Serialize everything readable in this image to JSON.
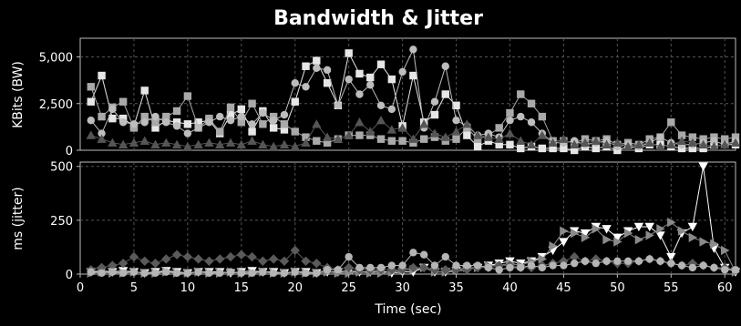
{
  "chart_data": [
    {
      "type": "line",
      "title": "Bandwidth & Jitter",
      "ylabel": "KBits (BW)",
      "xlabel": "",
      "xlim": [
        0,
        61
      ],
      "ylim": [
        0,
        6000
      ],
      "yticks": [
        0,
        2500,
        5000
      ],
      "ytick_labels": [
        "0",
        "2,500",
        "5,000"
      ],
      "grid": true,
      "series": [
        {
          "marker": "square",
          "color": "#e6e6e6",
          "x": [
            1,
            2,
            3,
            4,
            5,
            6,
            7,
            8,
            9,
            10,
            11,
            12,
            13,
            14,
            15,
            16,
            17,
            18,
            19,
            20,
            21,
            22,
            23,
            24,
            25,
            26,
            27,
            28,
            29,
            30,
            31,
            32,
            33,
            34,
            35,
            36,
            37,
            38,
            39,
            40,
            41,
            42,
            43,
            44,
            45,
            46,
            47,
            48,
            49,
            50,
            51,
            52,
            53,
            54,
            55,
            56,
            57,
            58,
            59,
            60,
            61
          ],
          "y": [
            2600,
            4000,
            1700,
            1700,
            1300,
            3200,
            1200,
            1600,
            1500,
            1400,
            1500,
            1600,
            900,
            1900,
            2200,
            1000,
            2100,
            1200,
            1100,
            2600,
            4500,
            4800,
            3600,
            2400,
            5200,
            4100,
            3900,
            4600,
            3800,
            1300,
            4000,
            1500,
            1900,
            3000,
            2400,
            800,
            200,
            500,
            300,
            300,
            100,
            200,
            100,
            100,
            100,
            0,
            200,
            100,
            200,
            0,
            200,
            100,
            300,
            300,
            200,
            100,
            100,
            100,
            200,
            300,
            300
          ]
        },
        {
          "marker": "square",
          "color": "#a9a9a9",
          "x": [
            1,
            2,
            3,
            4,
            5,
            6,
            7,
            8,
            9,
            10,
            11,
            12,
            13,
            14,
            15,
            16,
            17,
            18,
            19,
            20,
            21,
            22,
            23,
            24,
            25,
            26,
            27,
            28,
            29,
            30,
            31,
            32,
            33,
            34,
            35,
            36,
            37,
            38,
            39,
            40,
            41,
            42,
            43,
            44,
            45,
            46,
            47,
            48,
            49,
            50,
            51,
            52,
            53,
            54,
            55,
            56,
            57,
            58,
            59,
            60,
            61
          ],
          "y": [
            3400,
            1800,
            2300,
            2600,
            1200,
            1800,
            1500,
            1800,
            2100,
            2900,
            1200,
            1700,
            1000,
            2300,
            1500,
            2500,
            1400,
            1800,
            1400,
            1000,
            700,
            500,
            400,
            600,
            800,
            800,
            800,
            600,
            500,
            500,
            400,
            600,
            700,
            500,
            600,
            1200,
            600,
            800,
            1200,
            2000,
            3000,
            2500,
            1800,
            500,
            500,
            400,
            600,
            500,
            600,
            300,
            400,
            300,
            600,
            700,
            1500,
            800,
            700,
            600,
            700,
            600,
            700
          ]
        },
        {
          "marker": "circle",
          "color": "#bdbdbd",
          "x": [
            1,
            2,
            3,
            4,
            5,
            6,
            7,
            8,
            9,
            10,
            11,
            12,
            13,
            14,
            15,
            16,
            17,
            18,
            19,
            20,
            21,
            22,
            23,
            24,
            25,
            26,
            27,
            28,
            29,
            30,
            31,
            32,
            33,
            34,
            35,
            36,
            37,
            38,
            39,
            40,
            41,
            42,
            43,
            44,
            45,
            46,
            47,
            48,
            49,
            50,
            51,
            52,
            53,
            54,
            55,
            56,
            57,
            58,
            59,
            60,
            61
          ],
          "y": [
            1600,
            900,
            2200,
            1500,
            1400,
            1500,
            1800,
            1500,
            1300,
            900,
            1200,
            1500,
            1800,
            1600,
            1800,
            1400,
            2000,
            1600,
            1900,
            3600,
            3400,
            4400,
            4300,
            2400,
            3800,
            3000,
            3500,
            2400,
            2200,
            4200,
            5400,
            1200,
            2600,
            4500,
            1600,
            1300,
            800,
            900,
            700,
            1600,
            1800,
            1500,
            900,
            400,
            400,
            500,
            300,
            400,
            500,
            200,
            300,
            200,
            400,
            700,
            400,
            300,
            300,
            400,
            500,
            300,
            500
          ]
        },
        {
          "marker": "triangle-up",
          "color": "#555555",
          "x": [
            1,
            2,
            3,
            4,
            5,
            6,
            7,
            8,
            9,
            10,
            11,
            12,
            13,
            14,
            15,
            16,
            17,
            18,
            19,
            20,
            21,
            22,
            23,
            24,
            25,
            26,
            27,
            28,
            29,
            30,
            31,
            32,
            33,
            34,
            35,
            36,
            37,
            38,
            39,
            40,
            41,
            42,
            43,
            44,
            45,
            46,
            47,
            48,
            49,
            50,
            51,
            52,
            53,
            54,
            55,
            56,
            57,
            58,
            59,
            60,
            61
          ],
          "y": [
            800,
            600,
            400,
            300,
            400,
            500,
            300,
            400,
            300,
            200,
            300,
            400,
            300,
            400,
            300,
            500,
            300,
            200,
            300,
            200,
            400,
            1400,
            700,
            600,
            800,
            1500,
            1000,
            1600,
            1100,
            1200,
            600,
            1400,
            900,
            700,
            1000,
            1400,
            800,
            700,
            600,
            900,
            500,
            300,
            800,
            400,
            600,
            300,
            400,
            500,
            300,
            400,
            200,
            300,
            400,
            200,
            300,
            500,
            400,
            300,
            200,
            300,
            400
          ]
        }
      ]
    },
    {
      "type": "line",
      "title": "",
      "ylabel": "ms (jitter)",
      "xlabel": "Time (sec)",
      "xlim": [
        0,
        61
      ],
      "ylim": [
        0,
        520
      ],
      "xticks": [
        0,
        5,
        10,
        15,
        20,
        25,
        30,
        35,
        40,
        45,
        50,
        55,
        60
      ],
      "yticks": [
        0,
        250,
        500
      ],
      "ytick_labels": [
        "0",
        "250",
        "500"
      ],
      "grid": true,
      "series": [
        {
          "marker": "triangle-down",
          "color": "#ffffff",
          "x": [
            1,
            2,
            3,
            4,
            5,
            6,
            7,
            8,
            9,
            10,
            11,
            12,
            13,
            14,
            15,
            16,
            17,
            18,
            19,
            20,
            21,
            22,
            23,
            24,
            25,
            26,
            27,
            28,
            29,
            30,
            31,
            32,
            33,
            34,
            35,
            36,
            37,
            38,
            39,
            40,
            41,
            42,
            43,
            44,
            45,
            46,
            47,
            48,
            49,
            50,
            51,
            52,
            53,
            54,
            55,
            56,
            57,
            58,
            59,
            60,
            61
          ],
          "y": [
            10,
            15,
            10,
            15,
            10,
            5,
            10,
            15,
            10,
            5,
            10,
            10,
            10,
            5,
            10,
            15,
            10,
            10,
            5,
            10,
            10,
            5,
            10,
            10,
            15,
            10,
            10,
            15,
            5,
            10,
            10,
            30,
            10,
            10,
            15,
            20,
            30,
            40,
            50,
            60,
            50,
            60,
            80,
            110,
            150,
            200,
            190,
            220,
            210,
            170,
            200,
            220,
            220,
            180,
            80,
            190,
            220,
            500,
            120,
            30,
            10
          ]
        },
        {
          "marker": "triangle-right",
          "color": "#8a8a8a",
          "x": [
            1,
            2,
            3,
            4,
            5,
            6,
            7,
            8,
            9,
            10,
            11,
            12,
            13,
            14,
            15,
            16,
            17,
            18,
            19,
            20,
            21,
            22,
            23,
            24,
            25,
            26,
            27,
            28,
            29,
            30,
            31,
            32,
            33,
            34,
            35,
            36,
            37,
            38,
            39,
            40,
            41,
            42,
            43,
            44,
            45,
            46,
            47,
            48,
            49,
            50,
            51,
            52,
            53,
            54,
            55,
            56,
            57,
            58,
            59,
            60,
            61
          ],
          "y": [
            5,
            10,
            5,
            5,
            10,
            5,
            5,
            10,
            5,
            5,
            10,
            5,
            5,
            10,
            5,
            5,
            10,
            5,
            5,
            10,
            5,
            5,
            10,
            5,
            5,
            10,
            5,
            5,
            10,
            20,
            20,
            30,
            10,
            10,
            20,
            30,
            30,
            40,
            40,
            50,
            40,
            60,
            70,
            130,
            200,
            190,
            170,
            210,
            160,
            150,
            190,
            160,
            180,
            210,
            240,
            200,
            170,
            150,
            140,
            110,
            10
          ]
        },
        {
          "marker": "diamond",
          "color": "#5a5a5a",
          "x": [
            1,
            2,
            3,
            4,
            5,
            6,
            7,
            8,
            9,
            10,
            11,
            12,
            13,
            14,
            15,
            16,
            17,
            18,
            19,
            20,
            21,
            22,
            23,
            24,
            25,
            26,
            27,
            28,
            29,
            30,
            31,
            32,
            33,
            34,
            35,
            36,
            37,
            38,
            39,
            40,
            41,
            42,
            43,
            44,
            45,
            46,
            47,
            48,
            49,
            50,
            51,
            52,
            53,
            54,
            55,
            56,
            57,
            58,
            59,
            60,
            61
          ],
          "y": [
            20,
            30,
            40,
            50,
            80,
            60,
            50,
            70,
            90,
            80,
            70,
            60,
            70,
            80,
            90,
            80,
            60,
            70,
            60,
            110,
            60,
            50,
            30,
            20,
            30,
            20,
            20,
            20,
            20,
            20,
            30,
            30,
            20,
            20,
            20,
            20,
            30,
            30,
            40,
            40,
            30,
            30,
            40,
            50,
            60,
            80,
            60,
            70,
            60,
            50,
            50,
            60,
            70,
            60,
            50,
            40,
            50,
            40,
            30,
            30,
            20
          ]
        },
        {
          "marker": "circle",
          "color": "#b5b5b5",
          "x": [
            1,
            2,
            3,
            4,
            5,
            6,
            7,
            8,
            9,
            10,
            11,
            12,
            13,
            14,
            15,
            16,
            17,
            18,
            19,
            20,
            21,
            22,
            23,
            24,
            25,
            26,
            27,
            28,
            29,
            30,
            31,
            32,
            33,
            34,
            35,
            36,
            37,
            38,
            39,
            40,
            41,
            42,
            43,
            44,
            45,
            46,
            47,
            48,
            49,
            50,
            51,
            52,
            53,
            54,
            55,
            56,
            57,
            58,
            59,
            60,
            61
          ],
          "y": [
            10,
            5,
            10,
            5,
            10,
            5,
            5,
            10,
            5,
            5,
            10,
            5,
            5,
            10,
            5,
            5,
            10,
            5,
            5,
            10,
            5,
            5,
            20,
            20,
            80,
            30,
            30,
            30,
            40,
            40,
            100,
            90,
            40,
            80,
            40,
            40,
            40,
            30,
            20,
            30,
            30,
            40,
            30,
            40,
            40,
            50,
            60,
            50,
            60,
            60,
            60,
            60,
            70,
            60,
            50,
            40,
            30,
            40,
            30,
            20,
            20
          ]
        }
      ]
    }
  ]
}
